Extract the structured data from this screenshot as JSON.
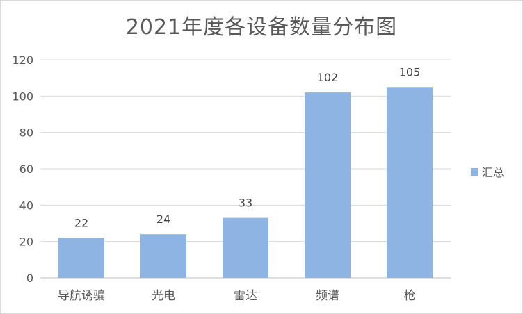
{
  "chart_data": {
    "type": "bar",
    "title": "2021年度各设备数量分布图",
    "categories": [
      "导航诱骗",
      "光电",
      "雷达",
      "频谱",
      "枪"
    ],
    "series": [
      {
        "name": "汇总",
        "values": [
          22,
          24,
          33,
          102,
          105
        ]
      }
    ],
    "ylim": [
      0,
      120
    ],
    "yticks": [
      0,
      20,
      40,
      60,
      80,
      100,
      120
    ],
    "xlabel": "",
    "ylabel": "",
    "grid": true,
    "legend": "right",
    "data_labels": true,
    "colors": {
      "bar": "#8db4e2",
      "grid": "#d9d9d9",
      "axis": "#bfbfbf",
      "text": "#595959"
    }
  }
}
